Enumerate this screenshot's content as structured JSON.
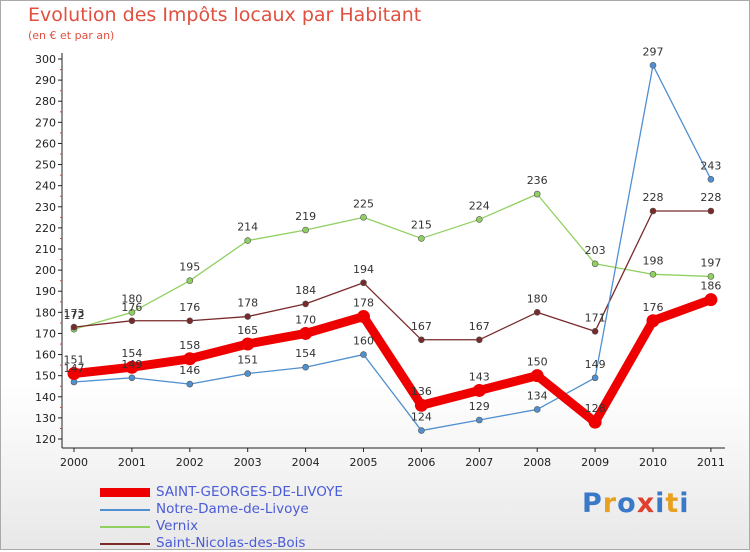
{
  "title": "Evolution des Impôts locaux par Habitant",
  "subtitle": "(en € et par an)",
  "logo": {
    "text": "Proxiti",
    "colors": [
      "#3a78c8",
      "#e8a020",
      "#3a78c8",
      "#e04030",
      "#3a78c8",
      "#e8a020",
      "#3a78c8"
    ]
  },
  "chart_data": {
    "type": "line",
    "categories": [
      "2000",
      "2001",
      "2002",
      "2003",
      "2004",
      "2005",
      "2006",
      "2007",
      "2008",
      "2009",
      "2010",
      "2011"
    ],
    "yticks": [
      "120",
      "130",
      "140",
      "150",
      "160",
      "170",
      "180",
      "190",
      "200",
      "210",
      "220",
      "230",
      "240",
      "250",
      "260",
      "270",
      "280",
      "290",
      "300"
    ],
    "ylim": [
      120,
      300
    ],
    "grid": false,
    "legend_position": "bottom-left",
    "series": [
      {
        "name": "SAINT-GEORGES-DE-LIVOYE",
        "color": "#ee0000",
        "values": [
          151,
          154,
          158,
          165,
          170,
          178,
          136,
          143,
          150,
          128,
          176,
          186
        ],
        "labels": [
          "151",
          "154",
          "158",
          "165",
          "170",
          "178",
          "136",
          "143",
          "150",
          "128",
          "176",
          "186"
        ]
      },
      {
        "name": "Notre-Dame-de-Livoye",
        "color": "#5090d0",
        "values": [
          147,
          149,
          146,
          151,
          154,
          160,
          124,
          129,
          134,
          149,
          297,
          243
        ],
        "labels": [
          "147",
          "149",
          "146",
          "151",
          "154",
          "160",
          "124",
          "129",
          "134",
          "149",
          "297",
          "243"
        ]
      },
      {
        "name": "Vernix",
        "color": "#90d060",
        "values": [
          172,
          180,
          195,
          214,
          219,
          225,
          215,
          224,
          236,
          203,
          198,
          197
        ],
        "labels": [
          "172",
          "180",
          "195",
          "214",
          "219",
          "225",
          "215",
          "224",
          "236",
          "203",
          "198",
          "197"
        ]
      },
      {
        "name": "Saint-Nicolas-des-Bois",
        "color": "#7a2a2a",
        "values": [
          173,
          176,
          176,
          178,
          184,
          194,
          167,
          167,
          180,
          171,
          228,
          228
        ],
        "labels": [
          "173",
          "176",
          "176",
          "178",
          "184",
          "194",
          "167",
          "167",
          "180",
          "171",
          "228",
          "228"
        ]
      }
    ]
  }
}
